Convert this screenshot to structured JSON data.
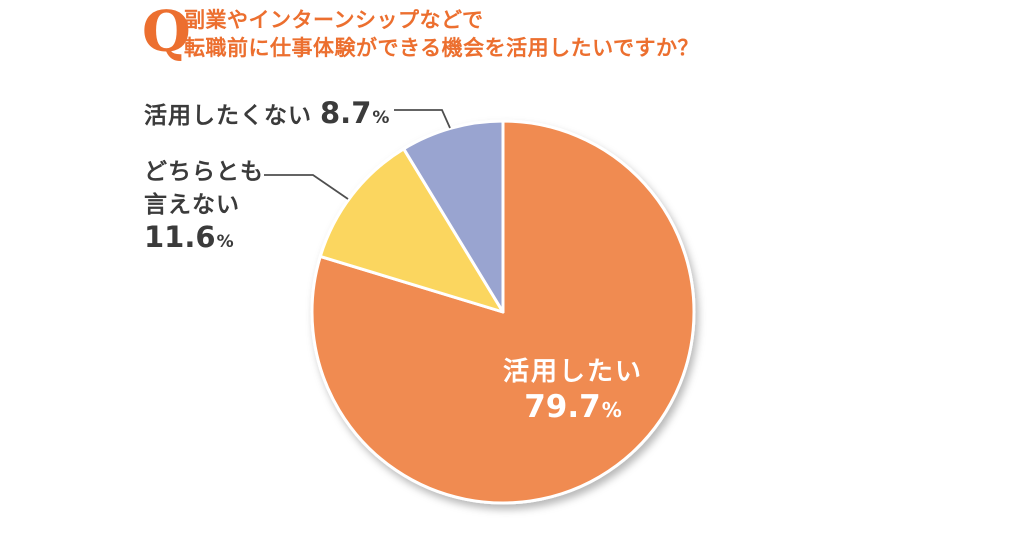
{
  "question": {
    "badge": "Q",
    "line1": "副業やインターンシップなどで",
    "line2": "転職前に仕事体験ができる機会を活用したいですか？",
    "accent_color": "#EC6F2F"
  },
  "chart_data": {
    "type": "pie",
    "title": "副業やインターンシップなどで転職前に仕事体験ができる機会を活用したいですか？",
    "unit": "%",
    "start_angle_deg": 0,
    "direction": "clockwise",
    "legend_position": "none",
    "slice_border_color": "#FFFFFF",
    "slices": [
      {
        "label": "活用したい",
        "value": 79.7,
        "color": "#F08B51",
        "label_placement": "inside",
        "text_color": "#FFFFFF"
      },
      {
        "label": "どちらとも言えない",
        "value": 11.6,
        "color": "#FBD65F",
        "label_placement": "outside-left",
        "text_color": "#3B3B3B"
      },
      {
        "label": "活用したくない",
        "value": 8.7,
        "color": "#99A4D0",
        "label_placement": "outside-top",
        "text_color": "#3B3B3B"
      }
    ]
  }
}
